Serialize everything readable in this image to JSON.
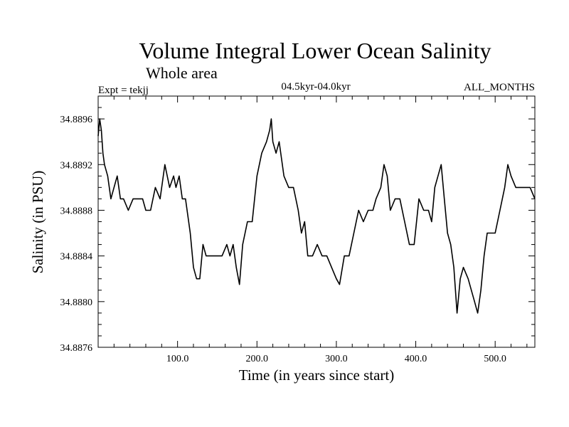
{
  "chart_data": {
    "type": "line",
    "title": "Volume Integral Lower Ocean Salinity",
    "subtitle": "Whole area",
    "experiment_label": "Expt = tekjj",
    "period_label": "04.5kyr-04.0kyr",
    "months_label": "ALL_MONTHS",
    "xlabel": "Time (in years since start)",
    "ylabel": "Salinity (in PSU)",
    "xlim": [
      0,
      550
    ],
    "ylim": [
      34.8876,
      34.8898
    ],
    "x_ticks": [
      100,
      200,
      300,
      400,
      500
    ],
    "x_tick_labels": [
      "100.0",
      "200.0",
      "300.0",
      "400.0",
      "500.0"
    ],
    "y_ticks": [
      34.8876,
      34.888,
      34.8884,
      34.8888,
      34.8892,
      34.8896
    ],
    "y_tick_labels": [
      "34.8876",
      "34.8880",
      "34.8884",
      "34.8888",
      "34.8892",
      "34.8896"
    ],
    "grid": false,
    "series": [
      {
        "name": "Salinity",
        "color": "#000000",
        "x": [
          0,
          2,
          4,
          6,
          8,
          12,
          16,
          20,
          24,
          28,
          32,
          38,
          44,
          50,
          56,
          60,
          66,
          72,
          78,
          84,
          90,
          95,
          98,
          102,
          106,
          110,
          116,
          120,
          124,
          128,
          132,
          136,
          140,
          144,
          150,
          156,
          162,
          166,
          170,
          174,
          178,
          182,
          188,
          194,
          200,
          206,
          212,
          216,
          218,
          220,
          224,
          228,
          234,
          240,
          246,
          252,
          256,
          260,
          264,
          270,
          276,
          282,
          288,
          294,
          300,
          304,
          310,
          316,
          322,
          328,
          334,
          340,
          346,
          350,
          356,
          360,
          364,
          368,
          374,
          380,
          386,
          392,
          398,
          404,
          410,
          416,
          420,
          424,
          428,
          432,
          436,
          440,
          444,
          448,
          452,
          456,
          460,
          466,
          470,
          474,
          478,
          482,
          486,
          490,
          496,
          500,
          506,
          512,
          516,
          520,
          526,
          532,
          538,
          544,
          550
        ],
        "y": [
          34.88945,
          34.8896,
          34.8895,
          34.8893,
          34.8892,
          34.8891,
          34.8889,
          34.889,
          34.8891,
          34.8889,
          34.8889,
          34.8888,
          34.8889,
          34.8889,
          34.8889,
          34.8888,
          34.8888,
          34.889,
          34.8889,
          34.8892,
          34.889,
          34.8891,
          34.889,
          34.8891,
          34.8889,
          34.8889,
          34.8886,
          34.8883,
          34.8882,
          34.8882,
          34.8885,
          34.8884,
          34.8884,
          34.8884,
          34.8884,
          34.8884,
          34.8885,
          34.8884,
          34.8885,
          34.8883,
          34.88815,
          34.8885,
          34.8887,
          34.8887,
          34.8891,
          34.8893,
          34.8894,
          34.8895,
          34.8896,
          34.8894,
          34.8893,
          34.8894,
          34.8891,
          34.889,
          34.889,
          34.8888,
          34.8886,
          34.8887,
          34.8884,
          34.8884,
          34.8885,
          34.8884,
          34.8884,
          34.8883,
          34.8882,
          34.88815,
          34.8884,
          34.8884,
          34.8886,
          34.8888,
          34.8887,
          34.8888,
          34.8888,
          34.8889,
          34.889,
          34.8892,
          34.8891,
          34.8888,
          34.8889,
          34.8889,
          34.8887,
          34.8885,
          34.8885,
          34.8889,
          34.8888,
          34.8888,
          34.8887,
          34.889,
          34.8891,
          34.8892,
          34.8889,
          34.8886,
          34.8885,
          34.8883,
          34.8879,
          34.8882,
          34.8883,
          34.8882,
          34.8881,
          34.888,
          34.8879,
          34.8881,
          34.8884,
          34.8886,
          34.8886,
          34.8886,
          34.8888,
          34.889,
          34.8892,
          34.8891,
          34.889,
          34.889,
          34.889,
          34.889,
          34.8889
        ]
      }
    ]
  }
}
